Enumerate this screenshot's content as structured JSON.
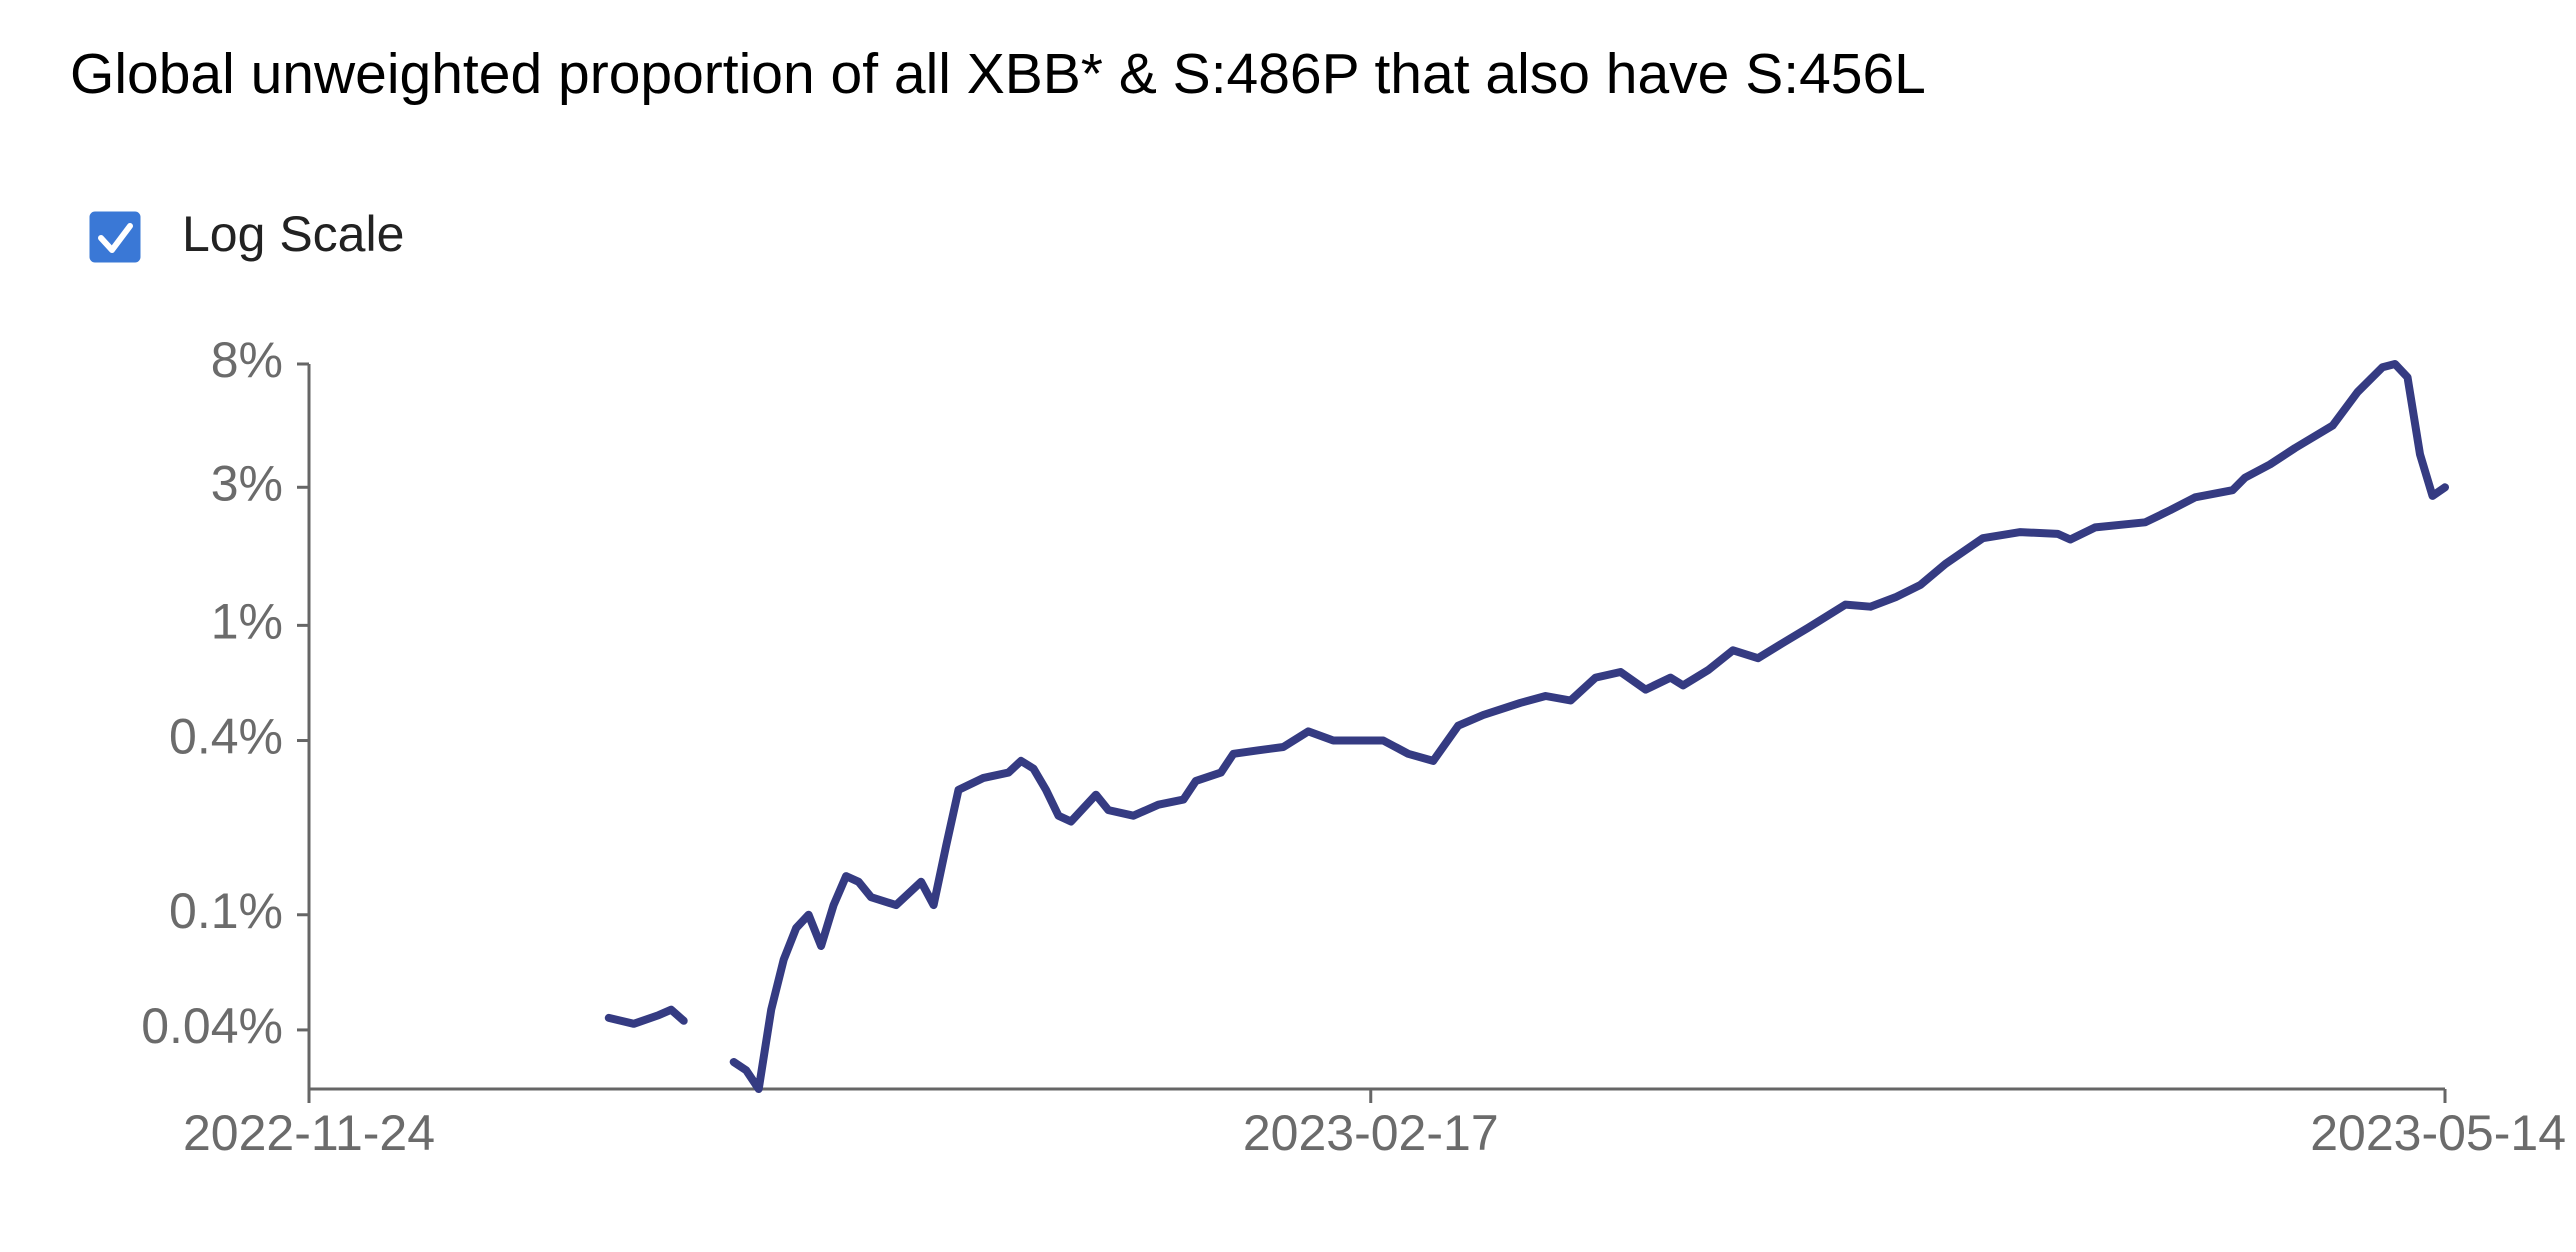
{
  "chart_data": {
    "type": "line",
    "title": "Global unweighted proportion of all XBB* & S:486P that also have S:456L",
    "checkbox_label": "Log Scale",
    "log_scale": true,
    "xlim": [
      "2022-11-24",
      "2023-05-14"
    ],
    "xticks": [
      "2022-11-24",
      "2023-02-17",
      "2023-05-14"
    ],
    "ylim": [
      0.025,
      8
    ],
    "yticks": [
      {
        "value": 0.04,
        "label": "0.04%"
      },
      {
        "value": 0.1,
        "label": "0.1%"
      },
      {
        "value": 0.4,
        "label": "0.4%"
      },
      {
        "value": 1,
        "label": "1%"
      },
      {
        "value": 3,
        "label": "3%"
      },
      {
        "value": 8,
        "label": "8%"
      }
    ],
    "x": [
      "2022-12-18",
      "2022-12-20",
      "2022-12-22",
      "2022-12-23",
      "2022-12-24",
      "2022-12-26",
      "2022-12-28",
      "2022-12-29",
      "2022-12-30",
      "2022-12-31",
      "2023-01-01",
      "2023-01-02",
      "2023-01-03",
      "2023-01-04",
      "2023-01-05",
      "2023-01-06",
      "2023-01-07",
      "2023-01-08",
      "2023-01-10",
      "2023-01-12",
      "2023-01-13",
      "2023-01-14",
      "2023-01-15",
      "2023-01-17",
      "2023-01-19",
      "2023-01-20",
      "2023-01-21",
      "2023-01-22",
      "2023-01-23",
      "2023-01-24",
      "2023-01-26",
      "2023-01-27",
      "2023-01-29",
      "2023-01-31",
      "2023-02-02",
      "2023-02-03",
      "2023-02-05",
      "2023-02-06",
      "2023-02-08",
      "2023-02-10",
      "2023-02-12",
      "2023-02-14",
      "2023-02-16",
      "2023-02-18",
      "2023-02-20",
      "2023-02-22",
      "2023-02-24",
      "2023-02-26",
      "2023-03-01",
      "2023-03-03",
      "2023-03-05",
      "2023-03-07",
      "2023-03-09",
      "2023-03-11",
      "2023-03-13",
      "2023-03-14",
      "2023-03-16",
      "2023-03-18",
      "2023-03-20",
      "2023-03-22",
      "2023-03-24",
      "2023-03-27",
      "2023-03-29",
      "2023-03-31",
      "2023-04-02",
      "2023-04-04",
      "2023-04-07",
      "2023-04-10",
      "2023-04-13",
      "2023-04-14",
      "2023-04-16",
      "2023-04-20",
      "2023-04-22",
      "2023-04-24",
      "2023-04-27",
      "2023-04-28",
      "2023-04-30",
      "2023-05-02",
      "2023-05-05",
      "2023-05-07",
      "2023-05-09",
      "2023-05-10",
      "2023-05-11",
      "2023-05-12",
      "2023-05-13",
      "2023-05-14"
    ],
    "series": [
      {
        "color": "#353b82",
        "values": [
          0.044,
          0.042,
          0.045,
          0.047,
          0.043,
          null,
          0.031,
          0.029,
          0.025,
          0.047,
          0.07,
          0.09,
          0.1,
          0.078,
          0.108,
          0.136,
          0.13,
          0.115,
          0.108,
          0.13,
          0.108,
          0.173,
          0.27,
          0.297,
          0.31,
          0.34,
          0.32,
          0.27,
          0.22,
          0.21,
          0.26,
          0.23,
          0.22,
          0.24,
          0.25,
          0.29,
          0.31,
          0.36,
          0.37,
          0.38,
          0.43,
          0.4,
          0.4,
          0.4,
          0.36,
          0.34,
          0.45,
          0.49,
          0.54,
          0.57,
          0.55,
          0.66,
          0.69,
          0.6,
          0.66,
          0.62,
          0.7,
          0.82,
          0.77,
          0.87,
          0.98,
          1.18,
          1.16,
          1.25,
          1.38,
          1.63,
          2.0,
          2.1,
          2.07,
          1.98,
          2.18,
          2.27,
          2.5,
          2.77,
          2.93,
          3.24,
          3.6,
          4.1,
          4.9,
          6.4,
          7.8,
          8.0,
          7.2,
          3.9,
          2.8,
          3.0
        ]
      }
    ]
  }
}
